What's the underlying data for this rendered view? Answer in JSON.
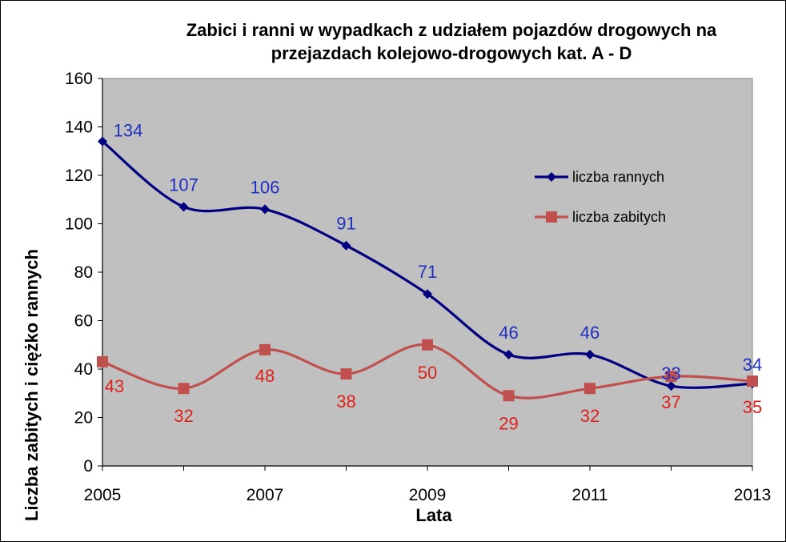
{
  "chart_data": {
    "type": "line",
    "title_line1": "Zabici i ranni w wypadkach z udziałem pojazdów drogowych  na",
    "title_line2": "przejazdach kolejowo-drogowych  kat. A - D",
    "xlabel": "Lata",
    "ylabel": "Liczba zabitych i ciężko rannych",
    "x": [
      2005,
      2006,
      2007,
      2008,
      2009,
      2010,
      2011,
      2012,
      2013
    ],
    "x_tick_labels": [
      "2005",
      "2007",
      "2009",
      "2011",
      "2013"
    ],
    "ylim": [
      0,
      160
    ],
    "y_ticks": [
      0,
      20,
      40,
      60,
      80,
      100,
      120,
      140,
      160
    ],
    "grid": false,
    "legend_position": "right",
    "series": [
      {
        "name": "liczba rannych",
        "values": [
          134,
          107,
          106,
          91,
          71,
          46,
          46,
          33,
          34
        ],
        "color": "#000080",
        "label_color": "#1f2fbf",
        "marker": "diamond"
      },
      {
        "name": "liczba zabitych",
        "values": [
          43,
          32,
          48,
          38,
          50,
          29,
          32,
          37,
          35
        ],
        "color": "#c0504d",
        "label_color": "#e0201a",
        "marker": "square"
      }
    ],
    "colors": {
      "plot_background": "#c0c0c0"
    }
  }
}
